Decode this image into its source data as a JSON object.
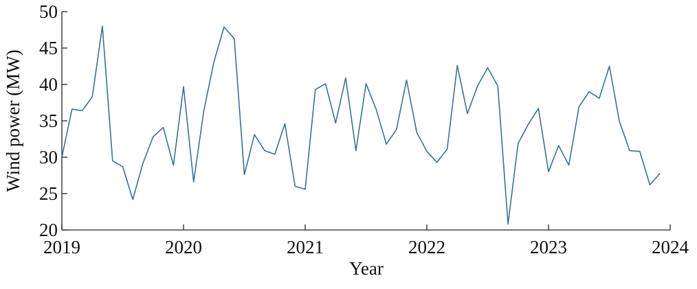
{
  "chart_data": {
    "type": "line",
    "x_label": "Year",
    "y_label": "Wind power (MW)",
    "x": [
      2019,
      2019.083,
      2019.167,
      2019.25,
      2019.333,
      2019.417,
      2019.5,
      2019.583,
      2019.667,
      2019.75,
      2019.833,
      2019.917,
      2020,
      2020.083,
      2020.167,
      2020.25,
      2020.333,
      2020.417,
      2020.5,
      2020.583,
      2020.667,
      2020.75,
      2020.833,
      2020.917,
      2021,
      2021.083,
      2021.167,
      2021.25,
      2021.333,
      2021.417,
      2021.5,
      2021.583,
      2021.667,
      2021.75,
      2021.833,
      2021.917,
      2022,
      2022.083,
      2022.167,
      2022.25,
      2022.333,
      2022.417,
      2022.5,
      2022.583,
      2022.667,
      2022.75,
      2022.833,
      2022.917,
      2023,
      2023.083,
      2023.167,
      2023.25,
      2023.333,
      2023.417,
      2023.5,
      2023.583,
      2023.667,
      2023.75,
      2023.833,
      2023.917
    ],
    "values": [
      30,
      36.6,
      36.4,
      38.3,
      48,
      29.5,
      28.7,
      24.2,
      29.2,
      32.8,
      34.1,
      28.9,
      39.7,
      26.6,
      36.4,
      43.1,
      47.9,
      46.3,
      27.6,
      33.1,
      30.9,
      30.4,
      34.6,
      26,
      25.6,
      39.3,
      40.1,
      34.7,
      40.9,
      30.9,
      40.1,
      36.6,
      31.8,
      33.8,
      40.6,
      33.4,
      30.8,
      29.3,
      31.1,
      42.6,
      36,
      39.8,
      42.3,
      39.8,
      20.8,
      31.9,
      34.5,
      36.7,
      28,
      31.6,
      28.9,
      36.9,
      39,
      38.1,
      42.5,
      34.9,
      30.9,
      30.8,
      26.2,
      27.8
    ],
    "color": "#3a7096",
    "xlim": [
      2019,
      2024
    ],
    "xticks": [
      2019,
      2020,
      2021,
      2022,
      2023,
      2024
    ],
    "ylim": [
      20,
      50
    ],
    "yticks": [
      20,
      25,
      30,
      35,
      40,
      45,
      50
    ]
  }
}
